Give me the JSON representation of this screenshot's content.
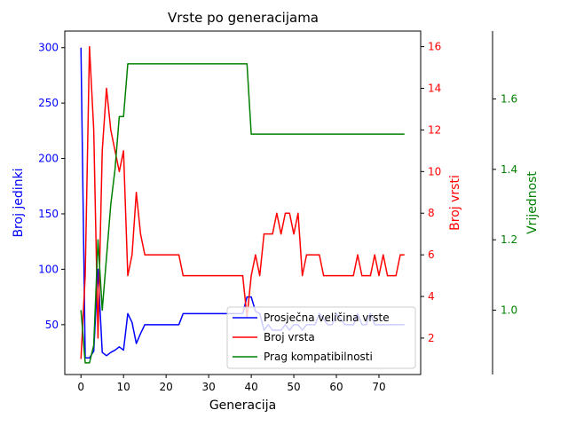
{
  "chart_data": {
    "type": "line",
    "title": "Vrste po generacijama",
    "xlabel": "Generacija",
    "xlim": [
      -3.8,
      79.8
    ],
    "xticks": [
      0,
      10,
      20,
      30,
      40,
      50,
      60,
      70
    ],
    "legend_position": "lower-right",
    "axes": [
      {
        "id": "left",
        "label": "Broj jedinki",
        "color": "#0000ff",
        "ylim": [
          5,
          315
        ],
        "ticks": [
          50,
          100,
          150,
          200,
          250,
          300
        ]
      },
      {
        "id": "right1",
        "label": "Broj vrsti",
        "color": "#ff0000",
        "ylim": [
          0.25,
          16.75
        ],
        "ticks": [
          2,
          4,
          6,
          8,
          10,
          12,
          14,
          16
        ]
      },
      {
        "id": "right2",
        "label": "Vrijednost",
        "color": "#008000",
        "ylim": [
          0.817,
          1.793
        ],
        "ticks": [
          1.0,
          1.2,
          1.4,
          1.6
        ]
      }
    ],
    "x": [
      0,
      1,
      2,
      3,
      4,
      5,
      6,
      7,
      8,
      9,
      10,
      11,
      12,
      13,
      14,
      15,
      16,
      17,
      18,
      19,
      20,
      21,
      22,
      23,
      24,
      25,
      26,
      27,
      28,
      29,
      30,
      31,
      32,
      33,
      34,
      35,
      36,
      37,
      38,
      39,
      40,
      41,
      42,
      43,
      44,
      45,
      46,
      47,
      48,
      49,
      50,
      51,
      52,
      53,
      54,
      55,
      56,
      57,
      58,
      59,
      60,
      61,
      62,
      63,
      64,
      65,
      66,
      67,
      68,
      69,
      70,
      71,
      72,
      73,
      74,
      75,
      76
    ],
    "series": [
      {
        "name": "Prosječna veličina vrste",
        "axis": "left",
        "color": "#0000ff",
        "values": [
          300,
          20,
          20,
          26,
          100,
          25,
          22,
          25,
          27,
          30,
          27,
          60,
          52,
          33,
          42,
          50,
          50,
          50,
          50,
          50,
          50,
          50,
          50,
          50,
          60,
          60,
          60,
          60,
          60,
          60,
          60,
          60,
          60,
          60,
          60,
          60,
          60,
          60,
          60,
          75,
          75,
          62,
          60,
          45,
          50,
          45,
          45,
          45,
          50,
          45,
          50,
          50,
          45,
          50,
          50,
          50,
          60,
          55,
          50,
          50,
          60,
          55,
          50,
          50,
          50,
          60,
          50,
          50,
          60,
          50,
          50,
          50,
          50,
          50,
          50,
          50,
          50
        ]
      },
      {
        "name": "Broj vrsta",
        "axis": "right1",
        "color": "#ff0000",
        "values": [
          1,
          5,
          16,
          12,
          2,
          11,
          14,
          12,
          11,
          10,
          11,
          5,
          6,
          9,
          7,
          6,
          6,
          6,
          6,
          6,
          6,
          6,
          6,
          6,
          5,
          5,
          5,
          5,
          5,
          5,
          5,
          5,
          5,
          5,
          5,
          5,
          5,
          5,
          5,
          3,
          5,
          6,
          5,
          7,
          7,
          7,
          8,
          7,
          8,
          8,
          7,
          8,
          5,
          6,
          6,
          6,
          6,
          5,
          5,
          5,
          5,
          5,
          5,
          5,
          5,
          6,
          5,
          5,
          5,
          6,
          5,
          6,
          5,
          5,
          5,
          6,
          6
        ]
      },
      {
        "name": "Prag kompatibilnosti",
        "axis": "right2",
        "color": "#008000",
        "values": [
          1.0,
          0.85,
          0.85,
          0.9,
          1.2,
          1.0,
          1.15,
          1.3,
          1.4,
          1.55,
          1.55,
          1.7,
          1.7,
          1.7,
          1.7,
          1.7,
          1.7,
          1.7,
          1.7,
          1.7,
          1.7,
          1.7,
          1.7,
          1.7,
          1.7,
          1.7,
          1.7,
          1.7,
          1.7,
          1.7,
          1.7,
          1.7,
          1.7,
          1.7,
          1.7,
          1.7,
          1.7,
          1.7,
          1.7,
          1.7,
          1.5,
          1.5,
          1.5,
          1.5,
          1.5,
          1.5,
          1.5,
          1.5,
          1.5,
          1.5,
          1.5,
          1.5,
          1.5,
          1.5,
          1.5,
          1.5,
          1.5,
          1.5,
          1.5,
          1.5,
          1.5,
          1.5,
          1.5,
          1.5,
          1.5,
          1.5,
          1.5,
          1.5,
          1.5,
          1.5,
          1.5,
          1.5,
          1.5,
          1.5,
          1.5,
          1.5,
          1.5
        ]
      }
    ]
  }
}
